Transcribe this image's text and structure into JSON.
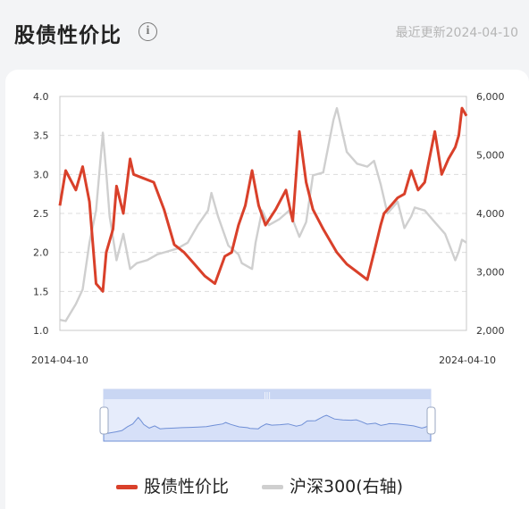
{
  "header": {
    "title": "股债性价比",
    "info_icon": "info-icon",
    "updated": "最近更新2024-04-10"
  },
  "chart_data": {
    "type": "line",
    "x_start": "2014-04-10",
    "x_end": "2024-04-10",
    "x_tick_labels": [
      "2014-04-10",
      "2024-04-10"
    ],
    "y_left": {
      "ylim": [
        1.0,
        4.0
      ],
      "ticks": [
        "1.0",
        "1.5",
        "2.0",
        "2.5",
        "3.0",
        "3.5",
        "4.0"
      ]
    },
    "y_right": {
      "ylim": [
        2000,
        6000
      ],
      "ticks": [
        "2,000",
        "3,000",
        "4,000",
        "5,000",
        "6,000"
      ]
    },
    "grid": true,
    "legend_position": "bottom",
    "series": [
      {
        "name": "股债性价比",
        "axis": "left",
        "color": "#d9402a",
        "x": [
          "2014-04-10",
          "2014-06",
          "2014-09",
          "2014-11",
          "2015-01",
          "2015-03",
          "2015-05",
          "2015-06",
          "2015-08",
          "2015-09",
          "2015-11",
          "2016-01",
          "2016-02",
          "2016-05",
          "2016-08",
          "2016-11",
          "2017-02",
          "2017-05",
          "2017-08",
          "2017-11",
          "2018-02",
          "2018-05",
          "2018-07",
          "2018-09",
          "2018-11",
          "2019-01",
          "2019-03",
          "2019-05",
          "2019-08",
          "2019-11",
          "2020-01",
          "2020-03",
          "2020-05",
          "2020-07",
          "2020-10",
          "2021-02",
          "2021-05",
          "2021-08",
          "2021-11",
          "2022-01",
          "2022-03",
          "2022-04",
          "2022-06",
          "2022-08",
          "2022-10",
          "2022-12",
          "2023-02",
          "2023-04",
          "2023-07",
          "2023-09",
          "2023-11",
          "2024-01",
          "2024-02",
          "2024-03",
          "2024-04-10"
        ],
        "values": [
          2.6,
          3.05,
          2.8,
          3.1,
          2.65,
          1.6,
          1.5,
          2.0,
          2.3,
          2.85,
          2.5,
          3.2,
          3.0,
          2.95,
          2.9,
          2.55,
          2.1,
          2.0,
          1.85,
          1.7,
          1.6,
          1.95,
          2.0,
          2.35,
          2.6,
          3.05,
          2.6,
          2.35,
          2.55,
          2.8,
          2.4,
          3.55,
          2.9,
          2.55,
          2.3,
          2.0,
          1.85,
          1.75,
          1.65,
          2.0,
          2.35,
          2.5,
          2.6,
          2.7,
          2.75,
          3.05,
          2.8,
          2.9,
          3.55,
          3.0,
          3.2,
          3.35,
          3.5,
          3.85,
          3.75
        ]
      },
      {
        "name": "沪深300(右轴)",
        "axis": "right",
        "color": "#cfcfcf",
        "x": [
          "2014-04-10",
          "2014-06",
          "2014-09",
          "2014-11",
          "2015-01",
          "2015-03",
          "2015-05",
          "2015-06",
          "2015-07",
          "2015-09",
          "2015-11",
          "2016-01",
          "2016-03",
          "2016-06",
          "2016-09",
          "2016-12",
          "2017-03",
          "2017-06",
          "2017-09",
          "2017-12",
          "2018-01",
          "2018-03",
          "2018-06",
          "2018-09",
          "2018-10",
          "2019-01",
          "2019-02",
          "2019-04",
          "2019-06",
          "2019-09",
          "2019-12",
          "2020-03",
          "2020-05",
          "2020-07",
          "2020-10",
          "2021-01",
          "2021-02",
          "2021-05",
          "2021-08",
          "2021-11",
          "2022-01",
          "2022-03",
          "2022-05",
          "2022-08",
          "2022-10",
          "2022-12",
          "2023-01",
          "2023-04",
          "2023-07",
          "2023-10",
          "2024-01",
          "2024-02",
          "2024-03",
          "2024-04-10"
        ],
        "values": [
          2180,
          2160,
          2450,
          2700,
          3500,
          4050,
          5380,
          4700,
          3950,
          3200,
          3650,
          3050,
          3150,
          3200,
          3300,
          3350,
          3400,
          3500,
          3800,
          4050,
          4350,
          3950,
          3450,
          3300,
          3150,
          3050,
          3500,
          4050,
          3800,
          3900,
          4050,
          3600,
          3850,
          4650,
          4700,
          5600,
          5800,
          5050,
          4850,
          4800,
          4900,
          4500,
          4000,
          4200,
          3750,
          3950,
          4100,
          4050,
          3850,
          3650,
          3200,
          3350,
          3550,
          3500
        ]
      }
    ]
  },
  "navigator": {
    "series_color": "#6f8fd6"
  },
  "legend": {
    "items": [
      {
        "label": "股债性价比",
        "color": "#d9402a"
      },
      {
        "label": "沪深300(右轴)",
        "color": "#cfcfcf"
      }
    ]
  }
}
